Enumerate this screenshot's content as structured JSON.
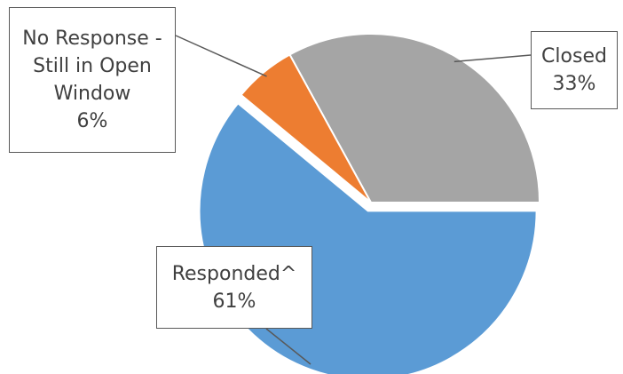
{
  "chart_data": {
    "type": "pie",
    "categories": [
      "Closed",
      "Responded^",
      "No Response - Still in Open Window"
    ],
    "values": [
      33,
      61,
      6
    ],
    "value_labels": [
      "33%",
      "61%",
      "6%"
    ],
    "colors": [
      "#a5a5a5",
      "#5b9bd5",
      "#ed7d31"
    ]
  }
}
